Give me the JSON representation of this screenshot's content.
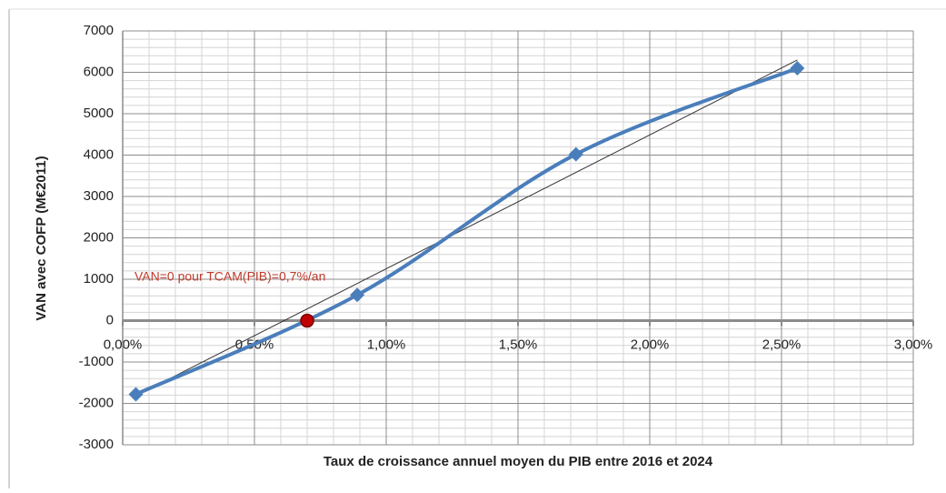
{
  "chart_data": {
    "type": "line",
    "x_label": "Taux de croissance annuel moyen du PIB entre 2016 et 2024",
    "y_label": "VAN avec COFP (M€2011)",
    "x": [
      0.05,
      0.89,
      1.72,
      2.56
    ],
    "series": [
      {
        "color": "#4a7ebb",
        "values": [
          -1780,
          620,
          4020,
          6100
        ]
      }
    ],
    "smooth": true,
    "trendline": "linear",
    "trendline_color": "#333333",
    "highlight_point": {
      "x": 0.7,
      "y": 0,
      "color": "#c00000"
    },
    "annotation": "VAN=0 pour TCAM(PIB)=0,7%/an",
    "annotation_color": "#c0392b",
    "xlim": [
      0,
      3
    ],
    "xticks": [
      {
        "value": 0,
        "label": "0,00%"
      },
      {
        "value": 0.5,
        "label": "0,50%"
      },
      {
        "value": 1,
        "label": "1,00%"
      },
      {
        "value": 1.5,
        "label": "1,50%"
      },
      {
        "value": 2,
        "label": "2,00%"
      },
      {
        "value": 2.5,
        "label": "2,50%"
      },
      {
        "value": 3,
        "label": "3,00%"
      }
    ],
    "ylim": [
      -3000,
      7000
    ],
    "yticks": [
      -3000,
      -2000,
      -1000,
      0,
      1000,
      2000,
      3000,
      4000,
      5000,
      6000,
      7000
    ],
    "grid": true,
    "minor_grid": {
      "x": 0.1,
      "y": 200
    }
  }
}
